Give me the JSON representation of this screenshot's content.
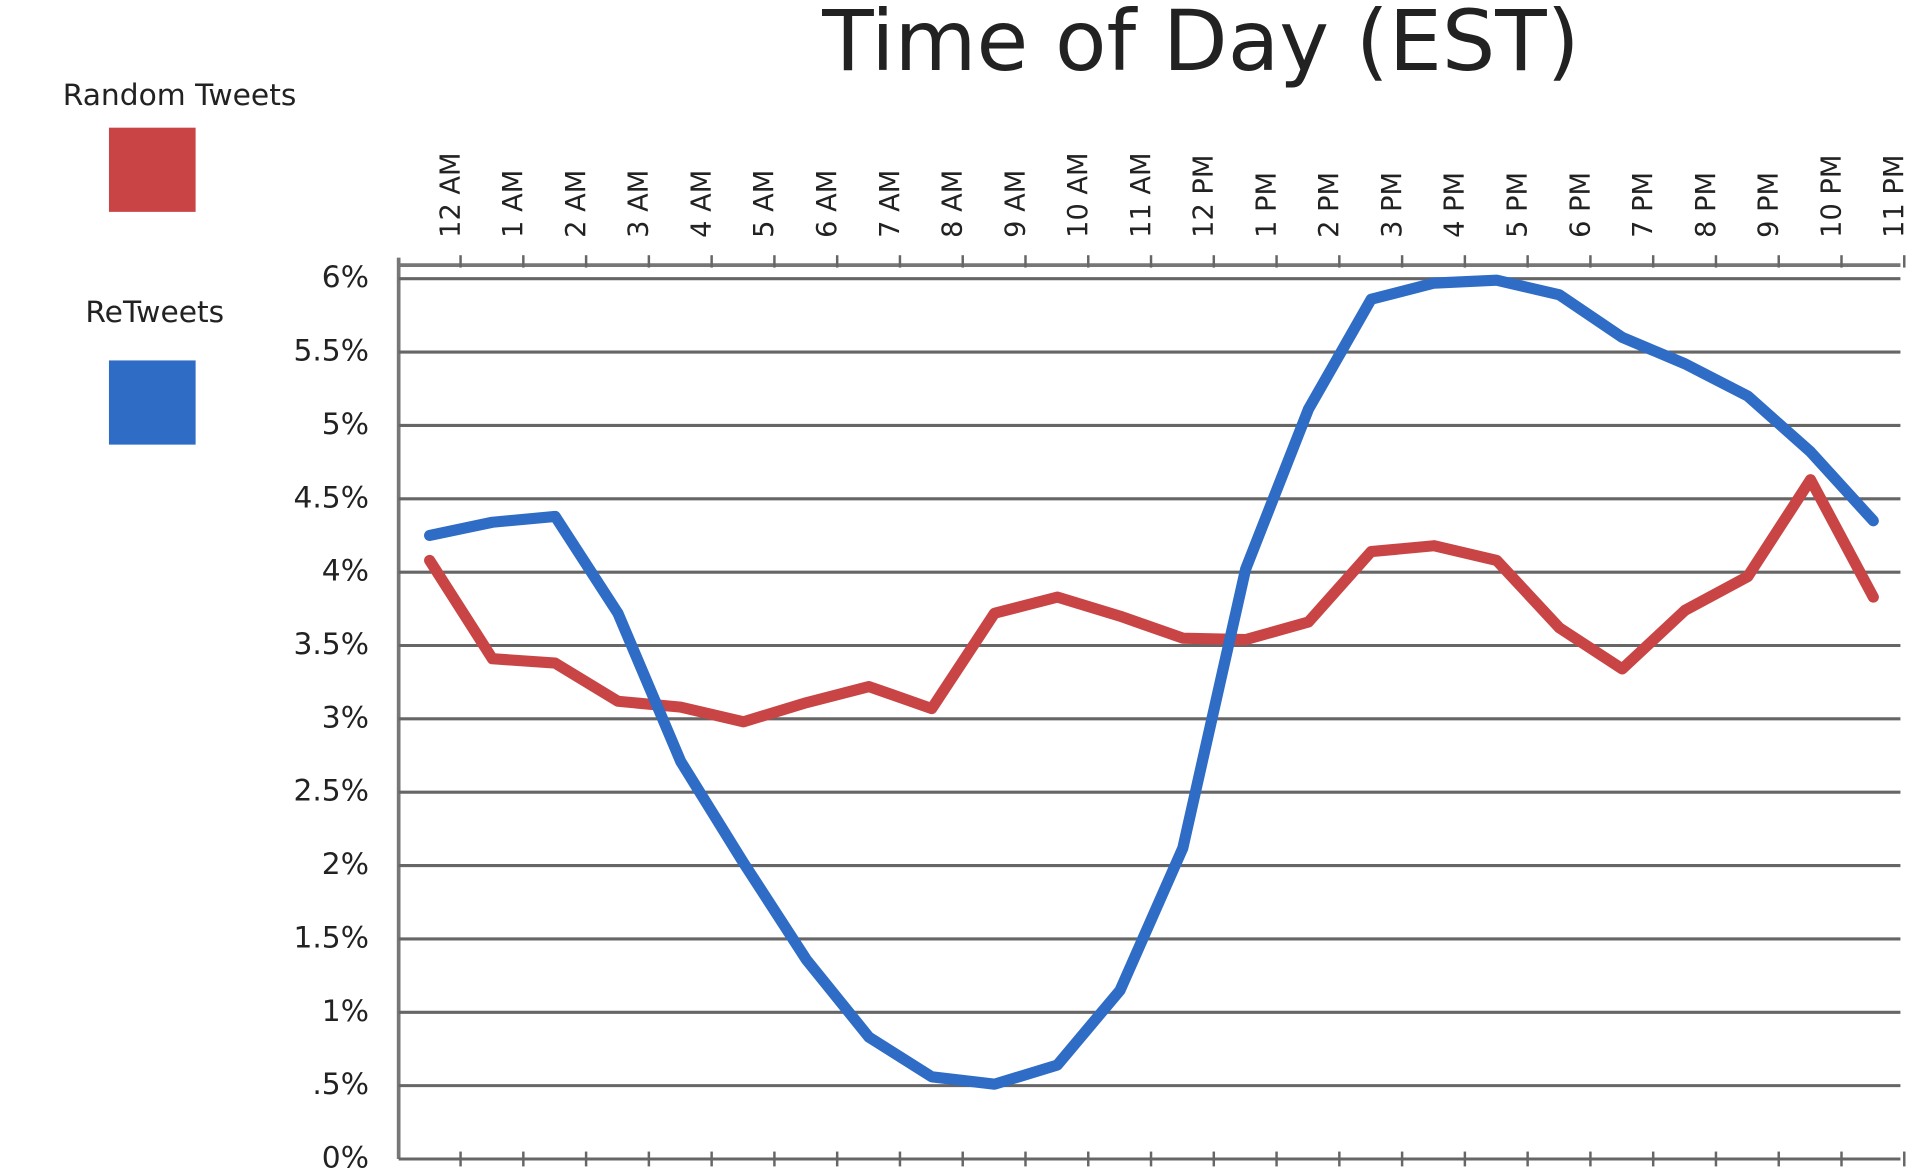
{
  "chart_data": {
    "type": "line",
    "title": "Time of Day (EST)",
    "categories": [
      "12 AM",
      "1 AM",
      "2 AM",
      "3 AM",
      "4 AM",
      "5 AM",
      "6 AM",
      "7 AM",
      "8 AM",
      "9 AM",
      "10 AM",
      "11 AM",
      "12 PM",
      "1 PM",
      "2 PM",
      "3 PM",
      "4 PM",
      "5 PM",
      "6 PM",
      "7 PM",
      "8 PM",
      "9 PM",
      "10 PM",
      "11 PM"
    ],
    "series": [
      {
        "name": "Random Tweets",
        "color": "#c94545",
        "values": [
          4.08,
          3.41,
          3.38,
          3.12,
          3.08,
          2.98,
          3.11,
          3.22,
          3.07,
          3.72,
          3.83,
          3.7,
          3.55,
          3.54,
          3.66,
          4.14,
          4.18,
          4.08,
          3.62,
          3.34,
          3.74,
          3.97,
          4.63,
          3.83
        ]
      },
      {
        "name": "ReTweets",
        "color": "#2f6cc6",
        "values": [
          4.25,
          4.34,
          4.38,
          3.72,
          2.71,
          2.02,
          1.36,
          0.83,
          0.56,
          0.51,
          0.64,
          1.15,
          2.12,
          4.02,
          5.11,
          5.86,
          5.97,
          5.99,
          5.89,
          5.6,
          5.42,
          5.2,
          4.82,
          4.35
        ]
      }
    ],
    "ylim": [
      0,
      6
    ],
    "yticks": [
      {
        "value": 0,
        "label": "0%"
      },
      {
        "value": 0.5,
        "label": ".5%"
      },
      {
        "value": 1,
        "label": "1%"
      },
      {
        "value": 1.5,
        "label": "1.5%"
      },
      {
        "value": 2,
        "label": "2%"
      },
      {
        "value": 2.5,
        "label": "2.5%"
      },
      {
        "value": 3,
        "label": "3%"
      },
      {
        "value": 3.5,
        "label": "3.5%"
      },
      {
        "value": 4,
        "label": "4%"
      },
      {
        "value": 4.5,
        "label": "4.5%"
      },
      {
        "value": 5,
        "label": "5%"
      },
      {
        "value": 5.5,
        "label": "5.5%"
      },
      {
        "value": 6,
        "label": "6%"
      }
    ],
    "grid": true
  }
}
